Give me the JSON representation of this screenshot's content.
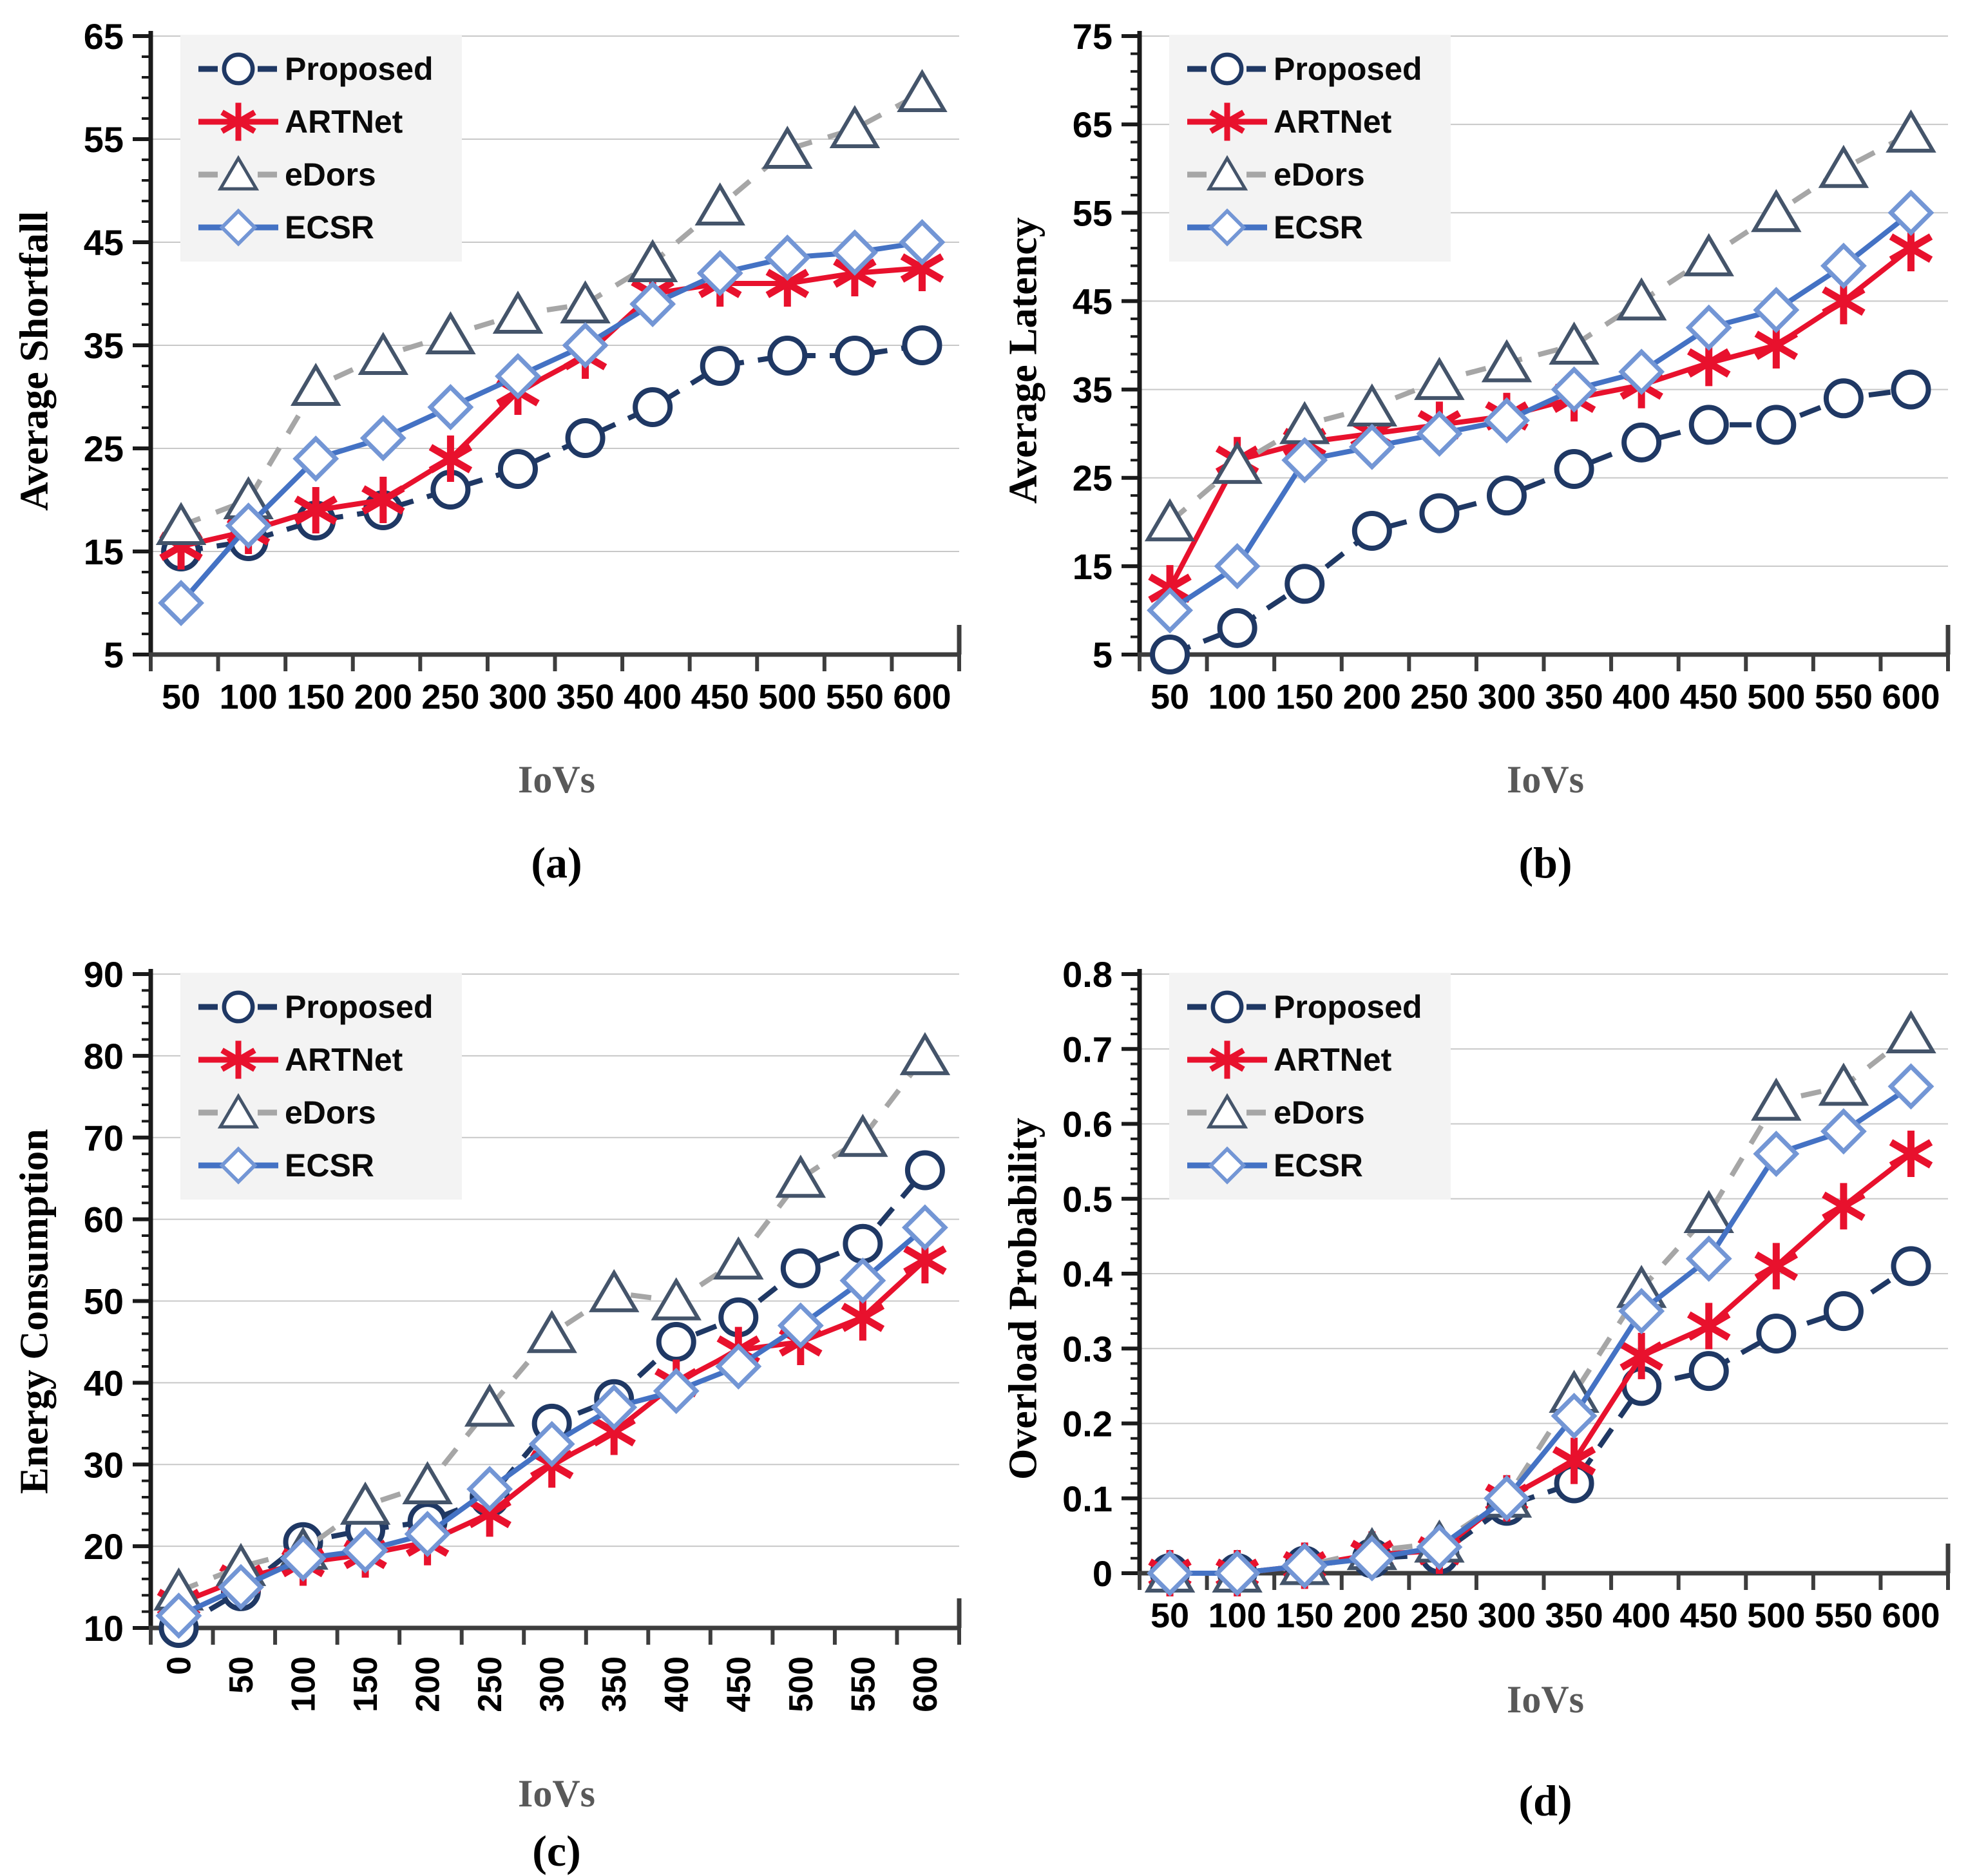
{
  "figure": {
    "background": "#ffffff",
    "colors": {
      "grid": "#c8c8c8",
      "y_axis": "#1a1a1a",
      "x_axis": "#3d3d3d",
      "tick_label": "#000000",
      "x_title": "#595959",
      "legend_bg": "#f3f3f3",
      "marker_fill": "#ffffff"
    },
    "series_styles": [
      {
        "key": "Proposed",
        "color": "#1f3864",
        "dash": "34 22",
        "marker": "circle",
        "marker_stroke": "#1f3864"
      },
      {
        "key": "ARTNet",
        "color": "#e8112d",
        "dash": "",
        "marker": "asterisk",
        "marker_stroke": "#e8112d"
      },
      {
        "key": "eDors",
        "color": "#a6a6a6",
        "dash": "32 26",
        "marker": "triangle",
        "marker_stroke": "#44546a"
      },
      {
        "key": "ECSR",
        "color": "#4472c4",
        "dash": "",
        "marker": "diamond",
        "marker_stroke": "#7396d5"
      }
    ],
    "legend_labels": [
      "Proposed",
      "ARTNet",
      "eDors",
      "ECSR"
    ]
  },
  "chart_data": [
    {
      "type": "line",
      "caption": "(a)",
      "ylabel": "Average Shortfall",
      "xlabel": "IoVs",
      "categories": [
        50,
        100,
        150,
        200,
        250,
        300,
        350,
        400,
        450,
        500,
        550,
        600
      ],
      "x_tick_rotation": 0,
      "ylim": [
        5,
        65
      ],
      "ytick_step": 10,
      "y_decimals": 0,
      "grid": true,
      "legend_position": "top-left",
      "series": [
        {
          "name": "Proposed",
          "values": [
            15,
            16,
            18,
            19,
            21,
            23,
            26,
            29,
            33,
            34,
            34,
            35
          ]
        },
        {
          "name": "ARTNet",
          "values": [
            15.5,
            17,
            19,
            20,
            24,
            30.5,
            34,
            40,
            41,
            41,
            42,
            42.5
          ]
        },
        {
          "name": "eDors",
          "values": [
            17.5,
            20,
            31,
            34,
            36,
            38,
            39,
            43,
            48.5,
            54,
            56,
            59.5
          ]
        },
        {
          "name": "ECSR",
          "values": [
            10,
            17.5,
            24,
            26,
            29,
            32,
            35,
            39,
            42,
            43.5,
            44,
            45
          ]
        }
      ]
    },
    {
      "type": "line",
      "caption": "(b)",
      "ylabel": "Average Latency",
      "xlabel": "IoVs",
      "categories": [
        50,
        100,
        150,
        200,
        250,
        300,
        350,
        400,
        450,
        500,
        550,
        600
      ],
      "x_tick_rotation": 0,
      "ylim": [
        5,
        75
      ],
      "ytick_step": 10,
      "y_decimals": 0,
      "grid": true,
      "legend_position": "top-left",
      "series": [
        {
          "name": "Proposed",
          "values": [
            5,
            8,
            13,
            19,
            21,
            23,
            26,
            29,
            31,
            31,
            34,
            35
          ]
        },
        {
          "name": "ARTNet",
          "values": [
            12.5,
            27,
            29,
            30,
            31,
            32,
            34,
            35.5,
            38,
            40,
            45,
            51
          ]
        },
        {
          "name": "eDors",
          "values": [
            20,
            26.5,
            31,
            33,
            36,
            38,
            40,
            45,
            50,
            55,
            60,
            64
          ]
        },
        {
          "name": "ECSR",
          "values": [
            10,
            15,
            27,
            28.5,
            30,
            31.5,
            35,
            37,
            42,
            44,
            49,
            55
          ]
        }
      ]
    },
    {
      "type": "line",
      "caption": "(c)",
      "ylabel": "Energy Consumption",
      "xlabel": "IoVs",
      "categories": [
        0,
        50,
        100,
        150,
        200,
        250,
        300,
        350,
        400,
        450,
        500,
        550,
        600
      ],
      "x_tick_rotation": -90,
      "ylim": [
        10,
        90
      ],
      "ytick_step": 10,
      "y_decimals": 0,
      "grid": true,
      "legend_position": "top-left",
      "series": [
        {
          "name": "Proposed",
          "values": [
            10,
            14.5,
            20.5,
            22,
            23,
            26,
            35,
            38,
            45,
            48,
            54,
            57,
            66
          ]
        },
        {
          "name": "ARTNet",
          "values": [
            13,
            16,
            18,
            19,
            20.5,
            24,
            30,
            34,
            40,
            44,
            45,
            48,
            55
          ]
        },
        {
          "name": "eDors",
          "values": [
            14.5,
            17.5,
            19.5,
            25,
            27.5,
            37,
            46,
            51,
            50,
            55,
            65,
            70,
            80
          ]
        },
        {
          "name": "ECSR",
          "values": [
            11.5,
            15,
            18.5,
            19.5,
            21.5,
            27,
            32.5,
            37,
            39,
            42,
            47,
            52.5,
            59
          ]
        }
      ]
    },
    {
      "type": "line",
      "caption": "(d)",
      "ylabel": "Overload Probability",
      "xlabel": "IoVs",
      "categories": [
        50,
        100,
        150,
        200,
        250,
        300,
        350,
        400,
        450,
        500,
        550,
        600
      ],
      "x_tick_rotation": 0,
      "ylim": [
        0,
        0.8
      ],
      "ytick_step": 0.1,
      "y_decimals": 1,
      "grid": true,
      "legend_position": "top-left",
      "series": [
        {
          "name": "Proposed",
          "values": [
            0,
            0,
            0.01,
            0.02,
            0.025,
            0.09,
            0.12,
            0.25,
            0.27,
            0.32,
            0.35,
            0.41
          ]
        },
        {
          "name": "ARTNet",
          "values": [
            0,
            0,
            0.01,
            0.025,
            0.03,
            0.1,
            0.15,
            0.29,
            0.33,
            0.41,
            0.49,
            0.56
          ]
        },
        {
          "name": "eDors",
          "values": [
            0,
            0,
            0.01,
            0.03,
            0.04,
            0.1,
            0.24,
            0.38,
            0.48,
            0.63,
            0.65,
            0.72
          ]
        },
        {
          "name": "ECSR",
          "values": [
            0,
            0,
            0.01,
            0.02,
            0.035,
            0.1,
            0.21,
            0.35,
            0.42,
            0.56,
            0.59,
            0.65
          ]
        }
      ]
    }
  ]
}
